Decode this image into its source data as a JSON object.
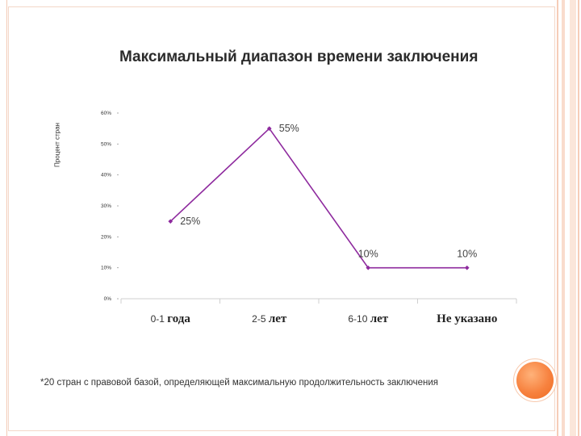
{
  "title": "Максимальный диапазон времени заключения",
  "footnote": "*20 стран с правовой базой, определяющей максимальную продолжительность заключения",
  "colors": {
    "line": "#8e2a9e",
    "accent_circle": "#f7823f",
    "stripes": "#f6cdb8"
  },
  "chart_data": {
    "type": "line",
    "ylabel": "Процент стран",
    "ylim": [
      0,
      60
    ],
    "y_ticks": [
      "0%",
      "10%",
      "20%",
      "30%",
      "40%",
      "50%",
      "60%"
    ],
    "categories": [
      {
        "prefix": "0-1",
        "suffix": "года"
      },
      {
        "prefix": "2-5",
        "suffix": "лет"
      },
      {
        "prefix": "6-10",
        "suffix": "лет"
      },
      {
        "prefix": "",
        "suffix": "Не указано"
      }
    ],
    "values": [
      25,
      55,
      10,
      10
    ],
    "data_labels": [
      "25%",
      "55%",
      "10%",
      "10%"
    ],
    "grid": false
  }
}
